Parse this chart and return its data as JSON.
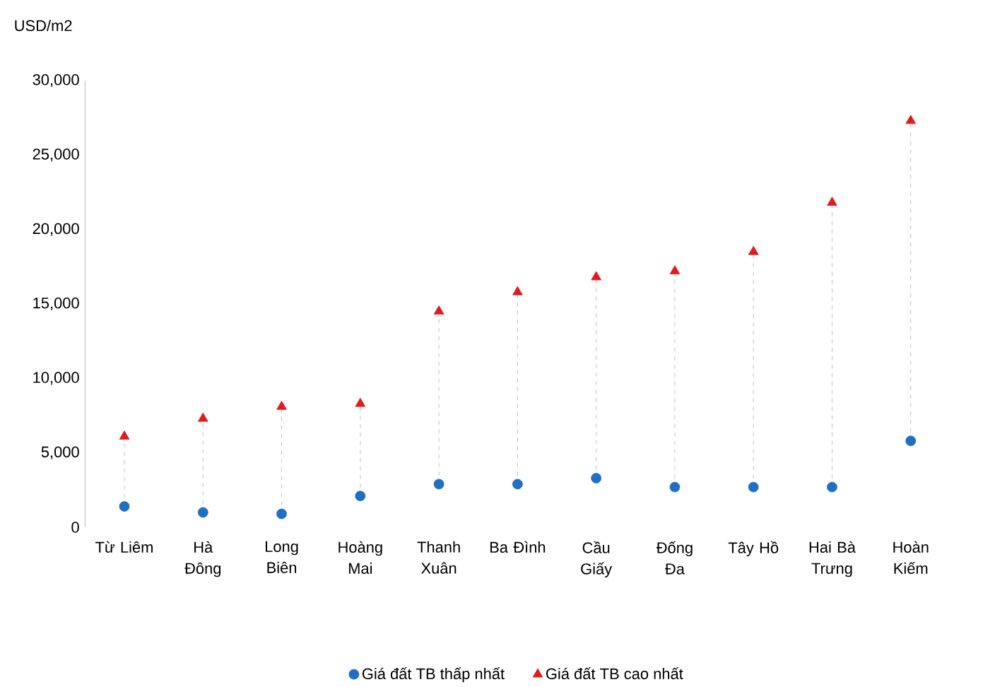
{
  "chart_data": {
    "type": "scatter",
    "ylabel": "USD/m2",
    "categories": [
      "Từ Liêm",
      "Hà Đông",
      "Long Biên",
      "Hoàng Mai",
      "Thanh Xuân",
      "Ba Đình",
      "Cầu Giấy",
      "Đống Đa",
      "Tây Hồ",
      "Hai Bà Trưng",
      "Hoàn Kiếm"
    ],
    "series": [
      {
        "name": "Giá đất TB thấp nhất",
        "color": "#1f6fc5",
        "marker": "circle",
        "values": [
          1400,
          1000,
          900,
          2100,
          2900,
          2900,
          3300,
          2700,
          2700,
          2700,
          5800
        ]
      },
      {
        "name": "Giá đất TB cao nhất",
        "color": "#e31a1c",
        "marker": "triangle",
        "values": [
          6100,
          7300,
          8100,
          8300,
          14500,
          15800,
          16800,
          17200,
          18500,
          21800,
          27300
        ]
      }
    ],
    "ylim": [
      0,
      30000
    ],
    "yticks": [
      {
        "value": 0,
        "label": "0"
      },
      {
        "value": 5000,
        "label": "5,000"
      },
      {
        "value": 10000,
        "label": "10,000"
      },
      {
        "value": 15000,
        "label": "15,000"
      },
      {
        "value": 20000,
        "label": "20,000"
      },
      {
        "value": 25000,
        "label": "25,000"
      },
      {
        "value": 30000,
        "label": "30,000"
      }
    ],
    "legend": "bottom"
  }
}
